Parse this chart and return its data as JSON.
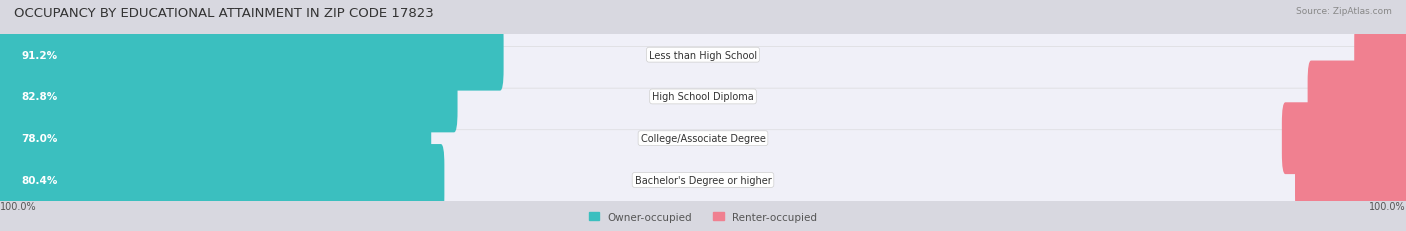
{
  "title": "OCCUPANCY BY EDUCATIONAL ATTAINMENT IN ZIP CODE 17823",
  "source": "Source: ZipAtlas.com",
  "categories": [
    "Less than High School",
    "High School Diploma",
    "College/Associate Degree",
    "Bachelor's Degree or higher"
  ],
  "owner_pct": [
    91.2,
    82.8,
    78.0,
    80.4
  ],
  "renter_pct": [
    8.8,
    17.3,
    22.0,
    19.6
  ],
  "owner_color": "#3bbfbf",
  "renter_color": "#f08090",
  "bg_color": "#d8d8e0",
  "row_bg_color": "#f0f0f8",
  "title_fontsize": 9.5,
  "label_fontsize": 7.5,
  "tick_fontsize": 7,
  "source_fontsize": 6.5,
  "axis_label_left": "100.0%",
  "axis_label_right": "100.0%"
}
